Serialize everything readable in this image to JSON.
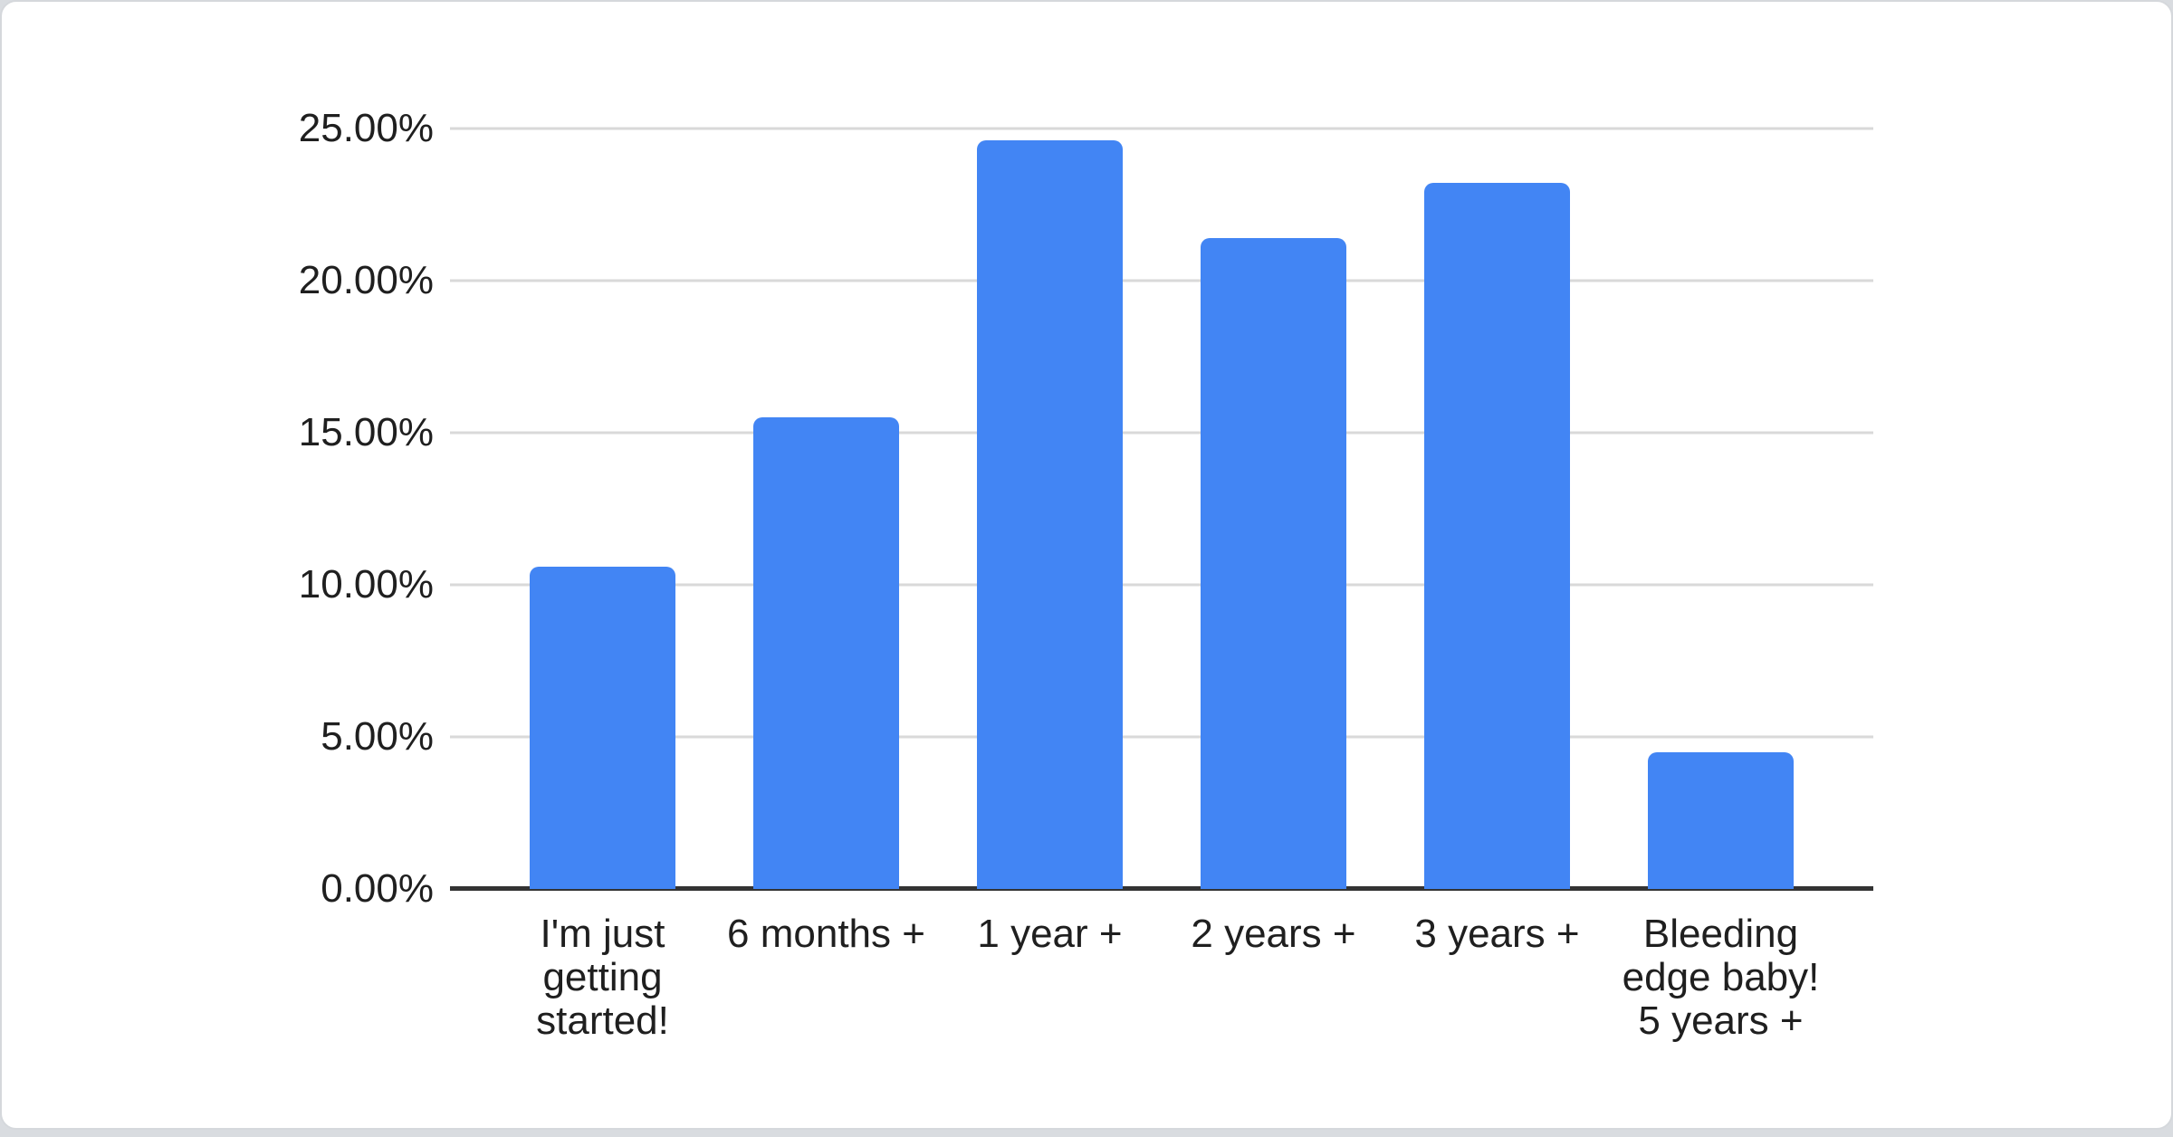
{
  "chart_data": {
    "type": "bar",
    "title": "",
    "xlabel": "",
    "ylabel": "",
    "categories": [
      "I'm just getting started!",
      "6 months +",
      "1 year +",
      "2 years +",
      "3 years +",
      "Bleeding edge baby! 5 years +"
    ],
    "values": [
      10.6,
      15.5,
      24.6,
      21.4,
      23.2,
      4.5
    ],
    "value_unit": "%",
    "ylim": [
      0,
      25
    ],
    "y_tick_step": 5,
    "y_ticks": [
      {
        "label": "25.00%",
        "value": 25
      },
      {
        "label": "20.00%",
        "value": 20
      },
      {
        "label": "15.00%",
        "value": 15
      },
      {
        "label": "10.00%",
        "value": 10
      },
      {
        "label": "5.00%",
        "value": 5
      },
      {
        "label": "0.00%",
        "value": 0
      }
    ],
    "grid": true,
    "legend_position": "none",
    "colors": {
      "bar": "#4285F4",
      "gridline": "#d9d9d9",
      "axis_baseline": "#333333",
      "label_text": "#1f1f1f",
      "card_background": "#ffffff",
      "page_background": "#d9dce0",
      "card_border": "#d5d8dc"
    }
  }
}
